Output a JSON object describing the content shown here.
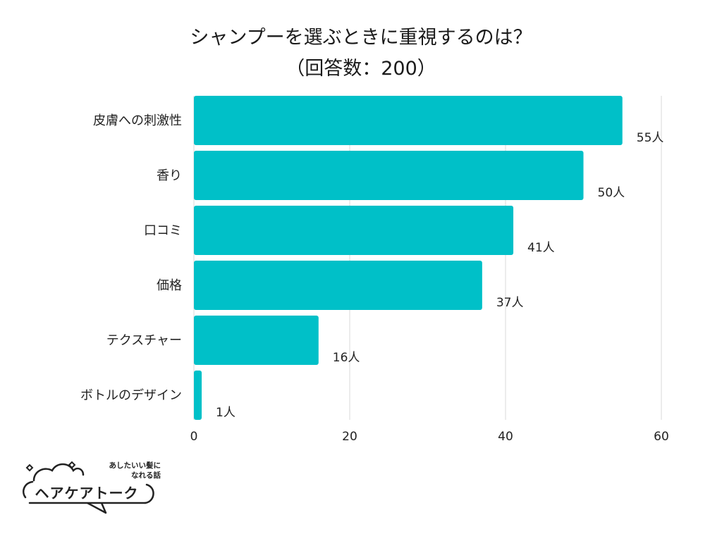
{
  "chart_data": {
    "type": "bar",
    "orientation": "horizontal",
    "title_lines": [
      "シャンプーを選ぶときに重視するのは？",
      "（回答数：200）"
    ],
    "categories": [
      "皮膚への刺激性",
      "香り",
      "口コミ",
      "価格",
      "テクスチャー",
      "ボトルのデザイン"
    ],
    "values": [
      55,
      50,
      41,
      37,
      16,
      1
    ],
    "value_labels": [
      "55人",
      "50人",
      "41人",
      "37人",
      "16人",
      "1人"
    ],
    "xlim": [
      0,
      60
    ],
    "xticks": [
      0,
      20,
      40,
      60
    ],
    "grid": true,
    "bar_color": "#00c0c8",
    "grid_color": "#d9d9d9"
  },
  "logo": {
    "tagline_line1": "あしたいい髪に",
    "tagline_line2": "なれる話",
    "name": "ヘアケアトーク"
  }
}
